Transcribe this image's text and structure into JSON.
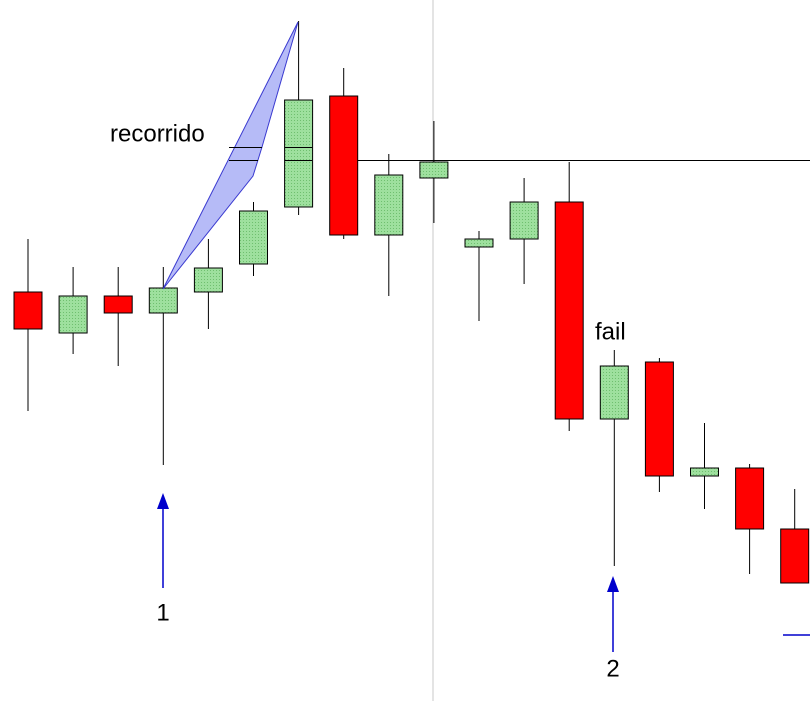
{
  "chart_data": {
    "type": "candlestick",
    "ylim": [
      0,
      700
    ],
    "up_color": "#9ee09e",
    "down_color": "#ff0000",
    "candles": [
      {
        "open": 408,
        "high": 461,
        "low": 289,
        "close": 371
      },
      {
        "open": 367,
        "high": 433,
        "low": 346,
        "close": 404
      },
      {
        "open": 404,
        "high": 433,
        "low": 334,
        "close": 387
      },
      {
        "open": 387,
        "high": 433,
        "low": 235,
        "close": 412
      },
      {
        "open": 408,
        "high": 461,
        "low": 371,
        "close": 432
      },
      {
        "open": 436,
        "high": 498,
        "low": 424,
        "close": 489
      },
      {
        "open": 493,
        "high": 679,
        "low": 485,
        "close": 600
      },
      {
        "open": 604,
        "high": 632,
        "low": 461,
        "close": 465
      },
      {
        "open": 465,
        "high": 546,
        "low": 404,
        "close": 525
      },
      {
        "open": 522,
        "high": 579,
        "low": 477,
        "close": 538
      },
      {
        "open": 453,
        "high": 469,
        "low": 379,
        "close": 461
      },
      {
        "open": 461,
        "high": 522,
        "low": 416,
        "close": 498
      },
      {
        "open": 498,
        "high": 538,
        "low": 269,
        "close": 281
      },
      {
        "open": 281,
        "high": 350,
        "low": 134,
        "close": 334
      },
      {
        "open": 338,
        "high": 342,
        "low": 208,
        "close": 224
      },
      {
        "open": 224,
        "high": 277,
        "low": 191,
        "close": 232
      },
      {
        "open": 232,
        "high": 236,
        "low": 126,
        "close": 171
      },
      {
        "open": 171,
        "high": 211,
        "low": 117,
        "close": 117
      }
    ],
    "annotations": [
      "recorrido",
      "fail",
      "1",
      "2"
    ]
  }
}
